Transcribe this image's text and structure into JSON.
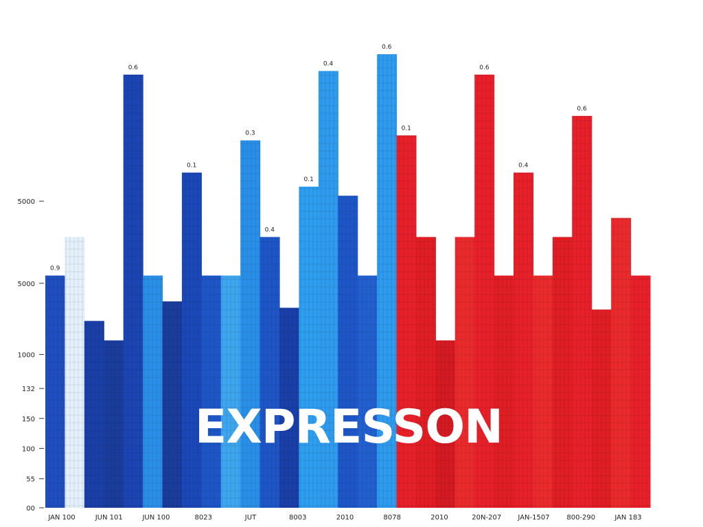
{
  "chart_data": {
    "type": "bar",
    "title": "",
    "xlabel": "",
    "ylabel": "",
    "overlay_text": "EXPRESSON",
    "y_ticks": [
      {
        "label": "00",
        "level": 0.0
      },
      {
        "label": "55",
        "level": 0.064
      },
      {
        "label": "100",
        "level": 0.131
      },
      {
        "label": "150",
        "level": 0.197
      },
      {
        "label": "132",
        "level": 0.263
      },
      {
        "label": "1000",
        "level": 0.338
      },
      {
        "label": "5000",
        "level": 0.495
      },
      {
        "label": "5000",
        "level": 0.676
      }
    ],
    "x_ticks": [
      "JAN 100",
      "JUN 101",
      "JUN 100",
      "8023",
      "JUT",
      "8003",
      "2010",
      "8078",
      "2010",
      "20N-207",
      "JAN-1507",
      "800-290",
      "JAN 183"
    ],
    "bars": [
      {
        "level": 0.512,
        "color": "#1f4fbf",
        "label": "0.9"
      },
      {
        "level": 0.597,
        "color": "#e4f0fb",
        "label": ""
      },
      {
        "level": 0.412,
        "color": "#1a3fa8",
        "label": ""
      },
      {
        "level": 0.369,
        "color": "#1a3d9c",
        "label": ""
      },
      {
        "level": 0.955,
        "color": "#1b45b3",
        "label": "0.6"
      },
      {
        "level": 0.512,
        "color": "#2a8fe8",
        "label": ""
      },
      {
        "level": 0.455,
        "color": "#1a3d9c",
        "label": ""
      },
      {
        "level": 0.739,
        "color": "#1b48b8",
        "label": "0.1"
      },
      {
        "level": 0.512,
        "color": "#1e56c8",
        "label": ""
      },
      {
        "level": 0.512,
        "color": "#3ea6ef",
        "label": ""
      },
      {
        "level": 0.81,
        "color": "#2a8fe8",
        "label": "0.3"
      },
      {
        "level": 0.597,
        "color": "#1e56c8",
        "label": "0.4"
      },
      {
        "level": 0.441,
        "color": "#1a3fa8",
        "label": ""
      },
      {
        "level": 0.708,
        "color": "#2e9ef0",
        "label": "0.1"
      },
      {
        "level": 0.963,
        "color": "#2f9bef",
        "label": "0.4"
      },
      {
        "level": 0.688,
        "color": "#1e56c8",
        "label": ""
      },
      {
        "level": 0.512,
        "color": "#2260d0",
        "label": ""
      },
      {
        "level": 1.0,
        "color": "#2f9bef",
        "label": "0.6"
      },
      {
        "level": 0.821,
        "color": "#e8202a",
        "label": "0.1"
      },
      {
        "level": 0.597,
        "color": "#e01e24",
        "label": ""
      },
      {
        "level": 0.369,
        "color": "#d41a22",
        "label": ""
      },
      {
        "level": 0.597,
        "color": "#ea2a2c",
        "label": ""
      },
      {
        "level": 0.955,
        "color": "#e8202a",
        "label": "0.6"
      },
      {
        "level": 0.512,
        "color": "#e01e24",
        "label": ""
      },
      {
        "level": 0.739,
        "color": "#e8202a",
        "label": "0.4"
      },
      {
        "level": 0.512,
        "color": "#ea2a2c",
        "label": ""
      },
      {
        "level": 0.597,
        "color": "#e01e24",
        "label": ""
      },
      {
        "level": 0.864,
        "color": "#e8202a",
        "label": "0.6"
      },
      {
        "level": 0.437,
        "color": "#e01e24",
        "label": ""
      },
      {
        "level": 0.639,
        "color": "#ea2a2c",
        "label": ""
      },
      {
        "level": 0.512,
        "color": "#e8202a",
        "label": ""
      }
    ]
  }
}
